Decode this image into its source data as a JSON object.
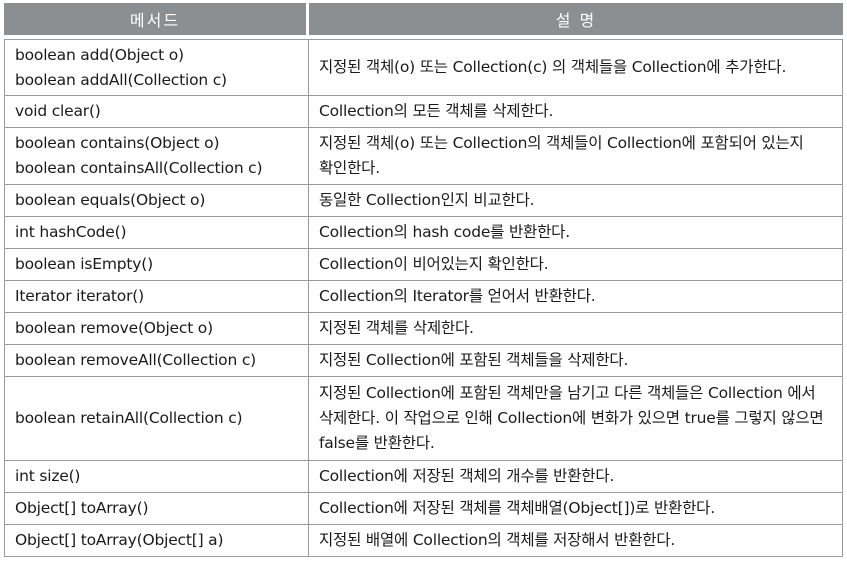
{
  "headers": {
    "method": "메서드",
    "description": "설 명"
  },
  "rows": [
    {
      "methods": [
        "boolean add(Object o)",
        "boolean addAll(Collection c)"
      ],
      "description": "지정된 객체(o) 또는 Collection(c) 의 객체들을 Collection에 추가한다."
    },
    {
      "methods": [
        "void clear()"
      ],
      "description": "Collection의 모든 객체를 삭제한다."
    },
    {
      "methods": [
        "boolean contains(Object o)",
        "boolean containsAll(Collection c)"
      ],
      "description": "지정된 객체(o) 또는 Collection의 객체들이 Collection에 포함되어 있는지 확인한다."
    },
    {
      "methods": [
        "boolean equals(Object o)"
      ],
      "description": "동일한 Collection인지 비교한다."
    },
    {
      "methods": [
        "int hashCode()"
      ],
      "description": "Collection의 hash code를 반환한다."
    },
    {
      "methods": [
        "boolean isEmpty()"
      ],
      "description": "Collection이 비어있는지 확인한다."
    },
    {
      "methods": [
        "Iterator iterator()"
      ],
      "description": "Collection의 Iterator를 얻어서 반환한다."
    },
    {
      "methods": [
        "boolean remove(Object o)"
      ],
      "description": "지정된 객체를 삭제한다."
    },
    {
      "methods": [
        "boolean removeAll(Collection c)"
      ],
      "description": "지정된 Collection에 포함된 객체들을 삭제한다."
    },
    {
      "methods": [
        "boolean retainAll(Collection c)"
      ],
      "description": "지정된 Collection에 포함된 객체만을 남기고 다른 객체들은 Collection 에서 삭제한다. 이 작업으로 인해 Collection에 변화가 있으면 true를 그렇지 않으면 false를 반환한다."
    },
    {
      "methods": [
        "int size()"
      ],
      "description": "Collection에 저장된 객체의 개수를 반환한다."
    },
    {
      "methods": [
        "Object[] toArray()"
      ],
      "description": "Collection에 저장된 객체를 객체배열(Object[])로 반환한다."
    },
    {
      "methods": [
        "Object[] toArray(Object[] a)"
      ],
      "description": "지정된 배열에 Collection의 객체를 저장해서 반환한다."
    }
  ]
}
